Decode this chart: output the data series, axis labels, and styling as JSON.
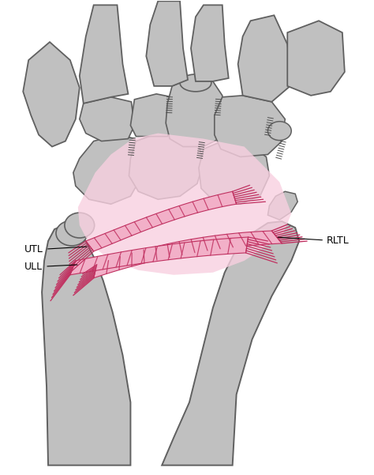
{
  "bg_color": "#ffffff",
  "bone_fill": "#c0c0c0",
  "bone_fill2": "#b8b8b8",
  "bone_edge": "#606060",
  "ligament_fill": "#f2b0c8",
  "ligament_fill2": "#f8d0e0",
  "ligament_edge": "#d04080",
  "ligament_line": "#c03060",
  "label_utl": "UTL",
  "label_ull": "ULL",
  "label_rltl": "RLTL",
  "label_fontsize": 9,
  "fig_width": 4.74,
  "fig_height": 6.01,
  "dpi": 100
}
